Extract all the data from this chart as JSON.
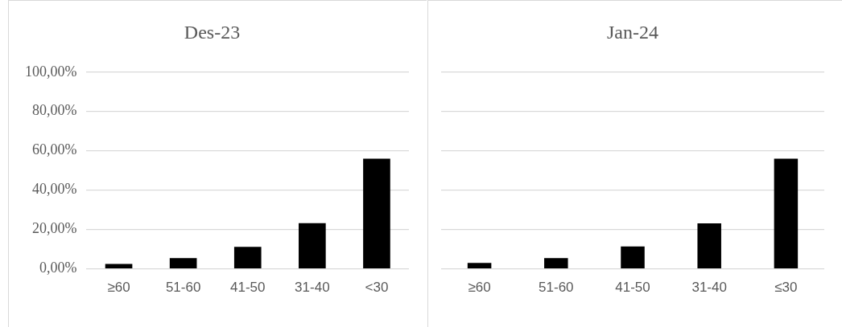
{
  "chart_data": [
    {
      "type": "bar",
      "title": "Des-23",
      "categories": [
        "≥60",
        "51-60",
        "41-50",
        "31-40",
        "<30"
      ],
      "values": [
        2.5,
        5.5,
        11.2,
        23.2,
        56.0
      ],
      "color": "#000000",
      "ylim": [
        0,
        100
      ],
      "yticks": [
        {
          "value": 0,
          "label": "0,00%"
        },
        {
          "value": 20,
          "label": "20,00%"
        },
        {
          "value": 40,
          "label": "40,00%"
        },
        {
          "value": 60,
          "label": "60,00%"
        },
        {
          "value": 80,
          "label": "80,00%"
        },
        {
          "value": 100,
          "label": "100,00%"
        }
      ],
      "grid": "y"
    },
    {
      "type": "bar",
      "title": "Jan-24",
      "categories": [
        "≥60",
        "51-60",
        "41-50",
        "31-40",
        "≤30"
      ],
      "values": [
        3.0,
        5.5,
        11.4,
        23.1,
        56.0
      ],
      "color": "#000000",
      "ylim": [
        0,
        100
      ],
      "yticks": [
        {
          "value": 0,
          "label": null
        },
        {
          "value": 20,
          "label": null
        },
        {
          "value": 40,
          "label": null
        },
        {
          "value": 60,
          "label": null
        },
        {
          "value": 80,
          "label": null
        },
        {
          "value": 100,
          "label": null
        }
      ],
      "grid": "y",
      "tick_labels": "x"
    }
  ]
}
